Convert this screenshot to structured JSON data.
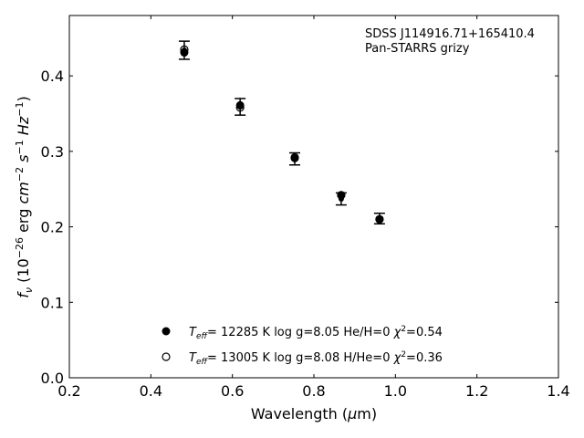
{
  "chart_data": {
    "type": "scatter",
    "xlabel": "Wavelength (μm)",
    "ylabel": "f_ν (10^-26 erg cm^-2 s^-1 Hz^-1)",
    "xlim": [
      0.2,
      1.4
    ],
    "ylim": [
      0.0,
      0.48
    ],
    "xticks": [
      "0.2",
      "0.4",
      "0.6",
      "0.8",
      "1.0",
      "1.2",
      "1.4"
    ],
    "yticks": [
      "0.0",
      "0.1",
      "0.2",
      "0.3",
      "0.4"
    ],
    "annotation": [
      "SDSS J114916.71+165410.4",
      "Pan-STARRS grizy"
    ],
    "observed": {
      "x": [
        0.482,
        0.619,
        0.753,
        0.867,
        0.961
      ],
      "y": [
        0.434,
        0.359,
        0.29,
        0.237,
        0.211
      ],
      "yerr": [
        0.012,
        0.011,
        0.008,
        0.008,
        0.007
      ]
    },
    "series": [
      {
        "name": "T_eff= 12285 K  log g=8.05  He/H=0  χ²=0.54",
        "marker": "filled",
        "x": [
          0.482,
          0.619,
          0.753,
          0.867,
          0.961
        ],
        "y": [
          0.431,
          0.361,
          0.291,
          0.242,
          0.21
        ]
      },
      {
        "name": "T_eff= 13005 K  log g=8.08  H/He=0  χ²=0.36",
        "marker": "open",
        "x": [
          0.482,
          0.619,
          0.753,
          0.867,
          0.961
        ],
        "y": [
          0.435,
          0.358,
          0.292,
          0.242,
          0.21
        ]
      }
    ],
    "legend_texts": [
      {
        "teff": "12285 K",
        "logg": "log g=8.05",
        "comp": "He/H=0",
        "chi": "=0.54"
      },
      {
        "teff": "13005 K",
        "logg": "log g=8.08",
        "comp": "H/He=0",
        "chi": "=0.36"
      }
    ]
  }
}
